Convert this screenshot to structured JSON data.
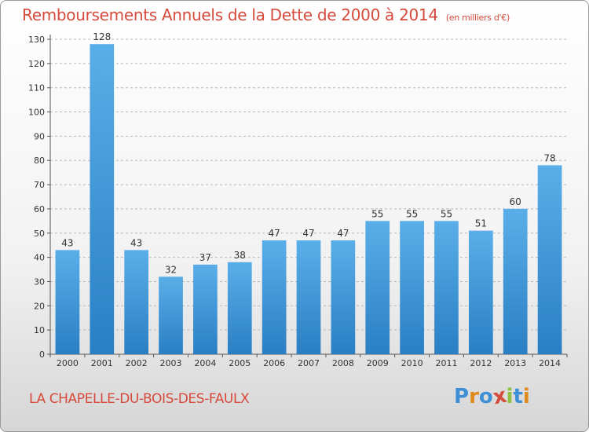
{
  "header": {
    "title": "Remboursements Annuels de la Dette de 2000 à 2014",
    "subtitle": "(en milliers d'€)"
  },
  "footer": {
    "commune": "LA CHAPELLE-DU-BOIS-DES-FAULX",
    "logo": "Proxiti"
  },
  "colors": {
    "bar_top": "#5aaee8",
    "bar_bottom": "#2a7fc4",
    "title": "#d64a3c",
    "grid": "#b8b8b8",
    "logo_letters": [
      "#3d8fd6",
      "#e08b1c",
      "#3d8fd6",
      "#d64a3c",
      "#8cc23f",
      "#3d8fd6",
      "#e08b1c"
    ]
  },
  "chart_data": {
    "type": "bar",
    "title": "Remboursements Annuels de la Dette de 2000 à 2014",
    "subtitle": "(en milliers d'€)",
    "categories": [
      "2000",
      "2001",
      "2002",
      "2003",
      "2004",
      "2005",
      "2006",
      "2007",
      "2008",
      "2009",
      "2010",
      "2011",
      "2012",
      "2013",
      "2014"
    ],
    "values": [
      43,
      128,
      43,
      32,
      37,
      38,
      47,
      47,
      47,
      55,
      55,
      55,
      51,
      60,
      78
    ],
    "data_labels": [
      "43",
      "128",
      "43",
      "32",
      "37",
      "38",
      "47",
      "47",
      "47",
      "55",
      "55",
      "55",
      "51",
      "60",
      "78"
    ],
    "yticks": [
      "0",
      "10",
      "20",
      "30",
      "40",
      "50",
      "60",
      "70",
      "80",
      "90",
      "100",
      "110",
      "120",
      "130"
    ],
    "ylim": [
      0,
      130
    ],
    "grid": true,
    "grid_style": "dashed-horizontal",
    "legend": "none"
  }
}
